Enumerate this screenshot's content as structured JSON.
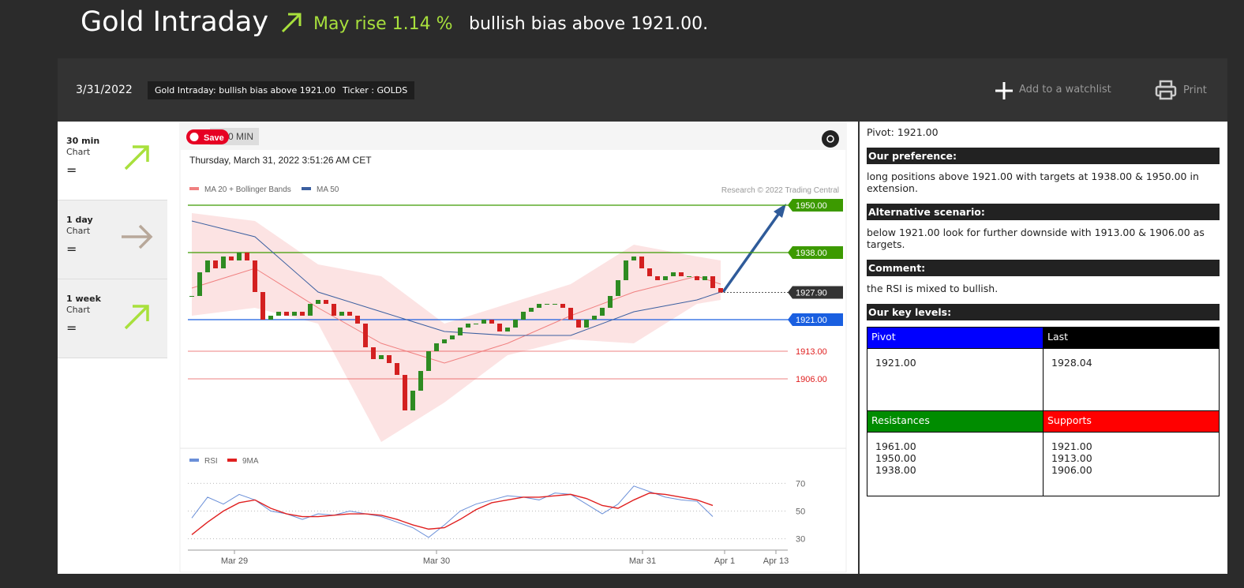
{
  "header": {
    "title": "Gold Intraday",
    "change": "May rise 1.14 %",
    "summary": "bullish bias above 1921.00."
  },
  "toolbar": {
    "date": "3/31/2022",
    "tags": [
      "Gold Intraday: bullish bias above 1921.00.",
      "Ticker : GOLDS"
    ],
    "watchlist": "Add to a watchlist",
    "print": "Print"
  },
  "sidebar": [
    {
      "period": "30 min",
      "sub": "Chart",
      "value": "="
    },
    {
      "period": "1 day",
      "sub": "Chart",
      "value": "="
    },
    {
      "period": "1 week",
      "sub": "Chart",
      "value": "="
    }
  ],
  "chart_panel": {
    "save": "Save",
    "interval": "0 MIN"
  },
  "chart_data": [
    {
      "type": "candlestick",
      "subtitle": "Thursday, March 31, 2022 3:51:26 AM CET",
      "credit": "Research © 2022 Trading Central",
      "close": [
        1927,
        1933,
        1936,
        1934,
        1937,
        1936,
        1938,
        1936,
        1928,
        1921,
        1922,
        1923,
        1922,
        1923,
        1922,
        1925,
        1926,
        1925,
        1922,
        1923,
        1922,
        1920,
        1914,
        1911,
        1912,
        1910,
        1907,
        1898,
        1903,
        1908,
        1913,
        1915,
        1916,
        1917,
        1919,
        1920,
        1920,
        1921,
        1920,
        1918,
        1919,
        1921,
        1923,
        1924,
        1925,
        1925,
        1925,
        1924,
        1921,
        1919,
        1921,
        1922,
        1924,
        1927,
        1931,
        1936,
        1937,
        1934,
        1932,
        1931,
        1932,
        1933,
        1932,
        1932,
        1931,
        1932,
        1929,
        1927.9
      ],
      "up_color": "#2e8b22",
      "down_color": "#d32020",
      "series_x": [
        0,
        8,
        16,
        24,
        32,
        40,
        48,
        56,
        64,
        67
      ],
      "series": [
        {
          "name": "MA 20 + Bollinger Bands",
          "color": "#f08080",
          "values": [
            1929,
            1934,
            1924,
            1915,
            1910,
            1915,
            1922,
            1928,
            1932,
            1930
          ],
          "upper": [
            1948,
            1946,
            1935,
            1932,
            1920,
            1925,
            1930,
            1940,
            1937,
            1936
          ],
          "lower": [
            1922,
            1924,
            1920,
            1890,
            1900,
            1912,
            1916,
            1915,
            1925,
            1926
          ]
        },
        {
          "name": "MA 50",
          "color": "#3b5fa0",
          "values": [
            1946,
            1942,
            1928,
            1923,
            1918,
            1917,
            1917,
            1923,
            1926,
            1928
          ]
        }
      ],
      "levels": [
        {
          "value": 1950,
          "label": "1950.00",
          "color": "#3c9a00",
          "style": "box",
          "line": "solid"
        },
        {
          "value": 1938,
          "label": "1938.00",
          "color": "#3c9a00",
          "style": "box",
          "line": "solid"
        },
        {
          "value": 1927.9,
          "label": "1927.90",
          "color": "#333333",
          "style": "box",
          "line": "dotted"
        },
        {
          "value": 1921,
          "label": "1921.00",
          "color": "#1a5fe0",
          "style": "box",
          "line": "solid"
        },
        {
          "value": 1913,
          "label": "1913.00",
          "color": "#e02020",
          "style": "text",
          "line": "solid"
        },
        {
          "value": 1906,
          "label": "1906.00",
          "color": "#e02020",
          "style": "text",
          "line": "solid"
        }
      ],
      "ylim": [
        1889,
        1953
      ],
      "xlim": [
        -0.3,
        75.4
      ]
    },
    {
      "type": "line",
      "x": [
        0,
        2,
        4,
        6,
        8,
        10,
        12,
        14,
        16,
        18,
        20,
        22,
        24,
        26,
        28,
        30,
        32,
        34,
        36,
        38,
        40,
        42,
        44,
        46,
        48,
        50,
        52,
        54,
        56,
        58,
        60,
        62,
        64,
        66
      ],
      "series": [
        {
          "name": "RSI",
          "color": "#6a8fd8",
          "values": [
            45,
            60,
            55,
            62,
            58,
            50,
            48,
            44,
            48,
            47,
            50,
            48,
            46,
            42,
            38,
            31,
            40,
            50,
            55,
            58,
            61,
            60,
            58,
            63,
            62,
            55,
            48,
            55,
            68,
            64,
            60,
            58,
            57,
            46
          ]
        },
        {
          "name": "9MA",
          "color": "#e02020",
          "values": [
            33,
            42,
            50,
            56,
            58,
            52,
            48,
            46,
            46,
            47,
            48,
            48,
            47,
            44,
            40,
            37,
            38,
            44,
            51,
            56,
            58,
            60,
            60,
            61,
            62,
            59,
            54,
            52,
            58,
            63,
            62,
            60,
            58,
            54
          ]
        }
      ],
      "ylim": [
        23,
        77
      ],
      "yticks": [
        30,
        50,
        70
      ],
      "xlim": [
        -0.3,
        75.4
      ],
      "xticks": [
        {
          "value": 5.4,
          "label": "Mar 29"
        },
        {
          "value": 31,
          "label": "Mar 30"
        },
        {
          "value": 57.1,
          "label": "Mar 31"
        },
        {
          "value": 67.5,
          "label": "Apr 1"
        },
        {
          "value": 74,
          "label": "Apr 13"
        }
      ]
    }
  ],
  "analysis": {
    "pivot": "Pivot: 1921.00",
    "sections": [
      {
        "heading": "Our preference:",
        "text": "long positions above 1921.00 with targets at 1938.00 & 1950.00 in extension."
      },
      {
        "heading": "Alternative scenario:",
        "text": "below 1921.00 look for further downside with 1913.00 & 1906.00 as targets."
      },
      {
        "heading": "Comment:",
        "text": "the RSI is mixed to bullish."
      }
    ],
    "key_levels": {
      "heading": "Our key levels:",
      "pivot_header": "Pivot",
      "pivot": "1921.00",
      "last_header": "Last",
      "last": "1928.04",
      "resistances_header": "Resistances",
      "resistances": [
        "1961.00",
        "1950.00",
        "1938.00"
      ],
      "supports_header": "Supports",
      "supports": [
        "1921.00",
        "1913.00",
        "1906.00"
      ]
    }
  }
}
